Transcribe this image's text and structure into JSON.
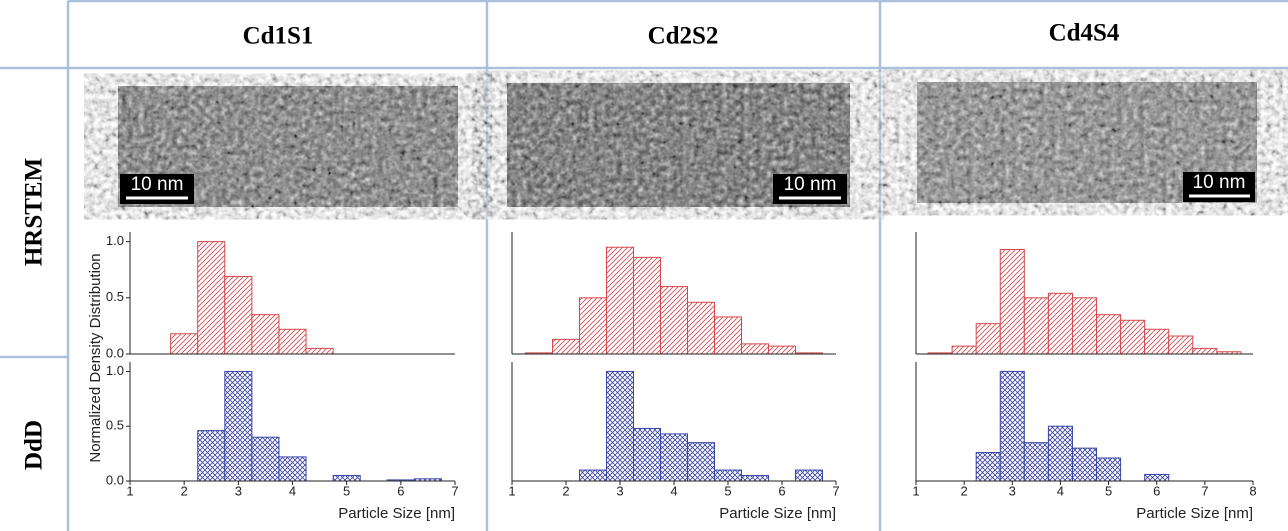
{
  "columns": [
    "Cd1S1",
    "Cd2S2",
    "Cd4S4"
  ],
  "rows": [
    "HRSTEM",
    "DdD"
  ],
  "scale_bars": [
    "10 nm",
    "10 nm",
    "10 nm"
  ],
  "y_label": "Normalized Density Distribution",
  "chart_data": [
    {
      "type": "histogram",
      "color": "#d4474c",
      "pattern": "diagonal",
      "bins": [
        1.75,
        2.25,
        2.75,
        3.25,
        3.75,
        4.25,
        4.75
      ],
      "values": [
        0.18,
        1.0,
        0.69,
        0.35,
        0.22,
        0.05
      ],
      "xlim": [
        1,
        7
      ],
      "ylim": [
        0,
        1.05
      ],
      "yticks": [
        {
          "value": 0,
          "label": "0.0"
        },
        {
          "value": 0.5,
          "label": "0.5"
        },
        {
          "value": 1,
          "label": "1.0"
        }
      ]
    },
    {
      "type": "histogram",
      "color": "#d4474c",
      "pattern": "diagonal",
      "bins": [
        1.25,
        1.75,
        2.25,
        2.75,
        3.25,
        3.75,
        4.25,
        4.75,
        5.25,
        5.75,
        6.25,
        6.75
      ],
      "values": [
        0.01,
        0.13,
        0.5,
        0.95,
        0.86,
        0.6,
        0.46,
        0.33,
        0.09,
        0.07,
        0.01
      ],
      "xlim": [
        1,
        7
      ],
      "ylim": [
        0,
        1.05
      ]
    },
    {
      "type": "histogram",
      "color": "#d4474c",
      "pattern": "diagonal",
      "bins": [
        1.25,
        1.75,
        2.25,
        2.75,
        3.25,
        3.75,
        4.25,
        4.75,
        5.25,
        5.75,
        6.25,
        6.75,
        7.25,
        7.75
      ],
      "values": [
        0.01,
        0.07,
        0.27,
        0.93,
        0.5,
        0.54,
        0.5,
        0.35,
        0.3,
        0.22,
        0.16,
        0.05,
        0.02
      ],
      "xlim": [
        1,
        8
      ],
      "ylim": [
        0,
        1.05
      ]
    },
    {
      "type": "histogram",
      "color": "#3a44a6",
      "pattern": "crosshatch",
      "bins": [
        2.25,
        2.75,
        3.25,
        3.75,
        4.25,
        4.75,
        5.25,
        5.75,
        6.25,
        6.75
      ],
      "values": [
        0.46,
        1.0,
        0.4,
        0.22,
        0,
        0.05,
        0,
        0.01,
        0.02
      ],
      "xlim": [
        1,
        7
      ],
      "ylim": [
        0,
        1.05
      ],
      "yticks": [
        {
          "value": 0,
          "label": "0.0"
        },
        {
          "value": 0.5,
          "label": "0.5"
        },
        {
          "value": 1,
          "label": "1.0"
        }
      ],
      "xticks": [
        1,
        2,
        3,
        4,
        5,
        6,
        7
      ],
      "xlabel": "Particle Size [nm]"
    },
    {
      "type": "histogram",
      "color": "#3a44a6",
      "pattern": "crosshatch",
      "bins": [
        2.25,
        2.75,
        3.25,
        3.75,
        4.25,
        4.75,
        5.25,
        5.75,
        6.25,
        6.75
      ],
      "values": [
        0.1,
        1.0,
        0.48,
        0.43,
        0.35,
        0.1,
        0.05,
        0,
        0.1
      ],
      "xlim": [
        1,
        7
      ],
      "ylim": [
        0,
        1.05
      ],
      "xticks": [
        1,
        2,
        3,
        4,
        5,
        6,
        7
      ],
      "xlabel": "Particle Size [nm]"
    },
    {
      "type": "histogram",
      "color": "#3a44a6",
      "pattern": "crosshatch",
      "bins": [
        2.25,
        2.75,
        3.25,
        3.75,
        4.25,
        4.75,
        5.25,
        5.75,
        6.25
      ],
      "values": [
        0.26,
        1.0,
        0.35,
        0.5,
        0.3,
        0.21,
        0,
        0.06
      ],
      "xlim": [
        1,
        8
      ],
      "ylim": [
        0,
        1.05
      ],
      "xticks": [
        1,
        2,
        3,
        4,
        5,
        6,
        7,
        8
      ],
      "xlabel": "Particle Size [nm]"
    }
  ]
}
